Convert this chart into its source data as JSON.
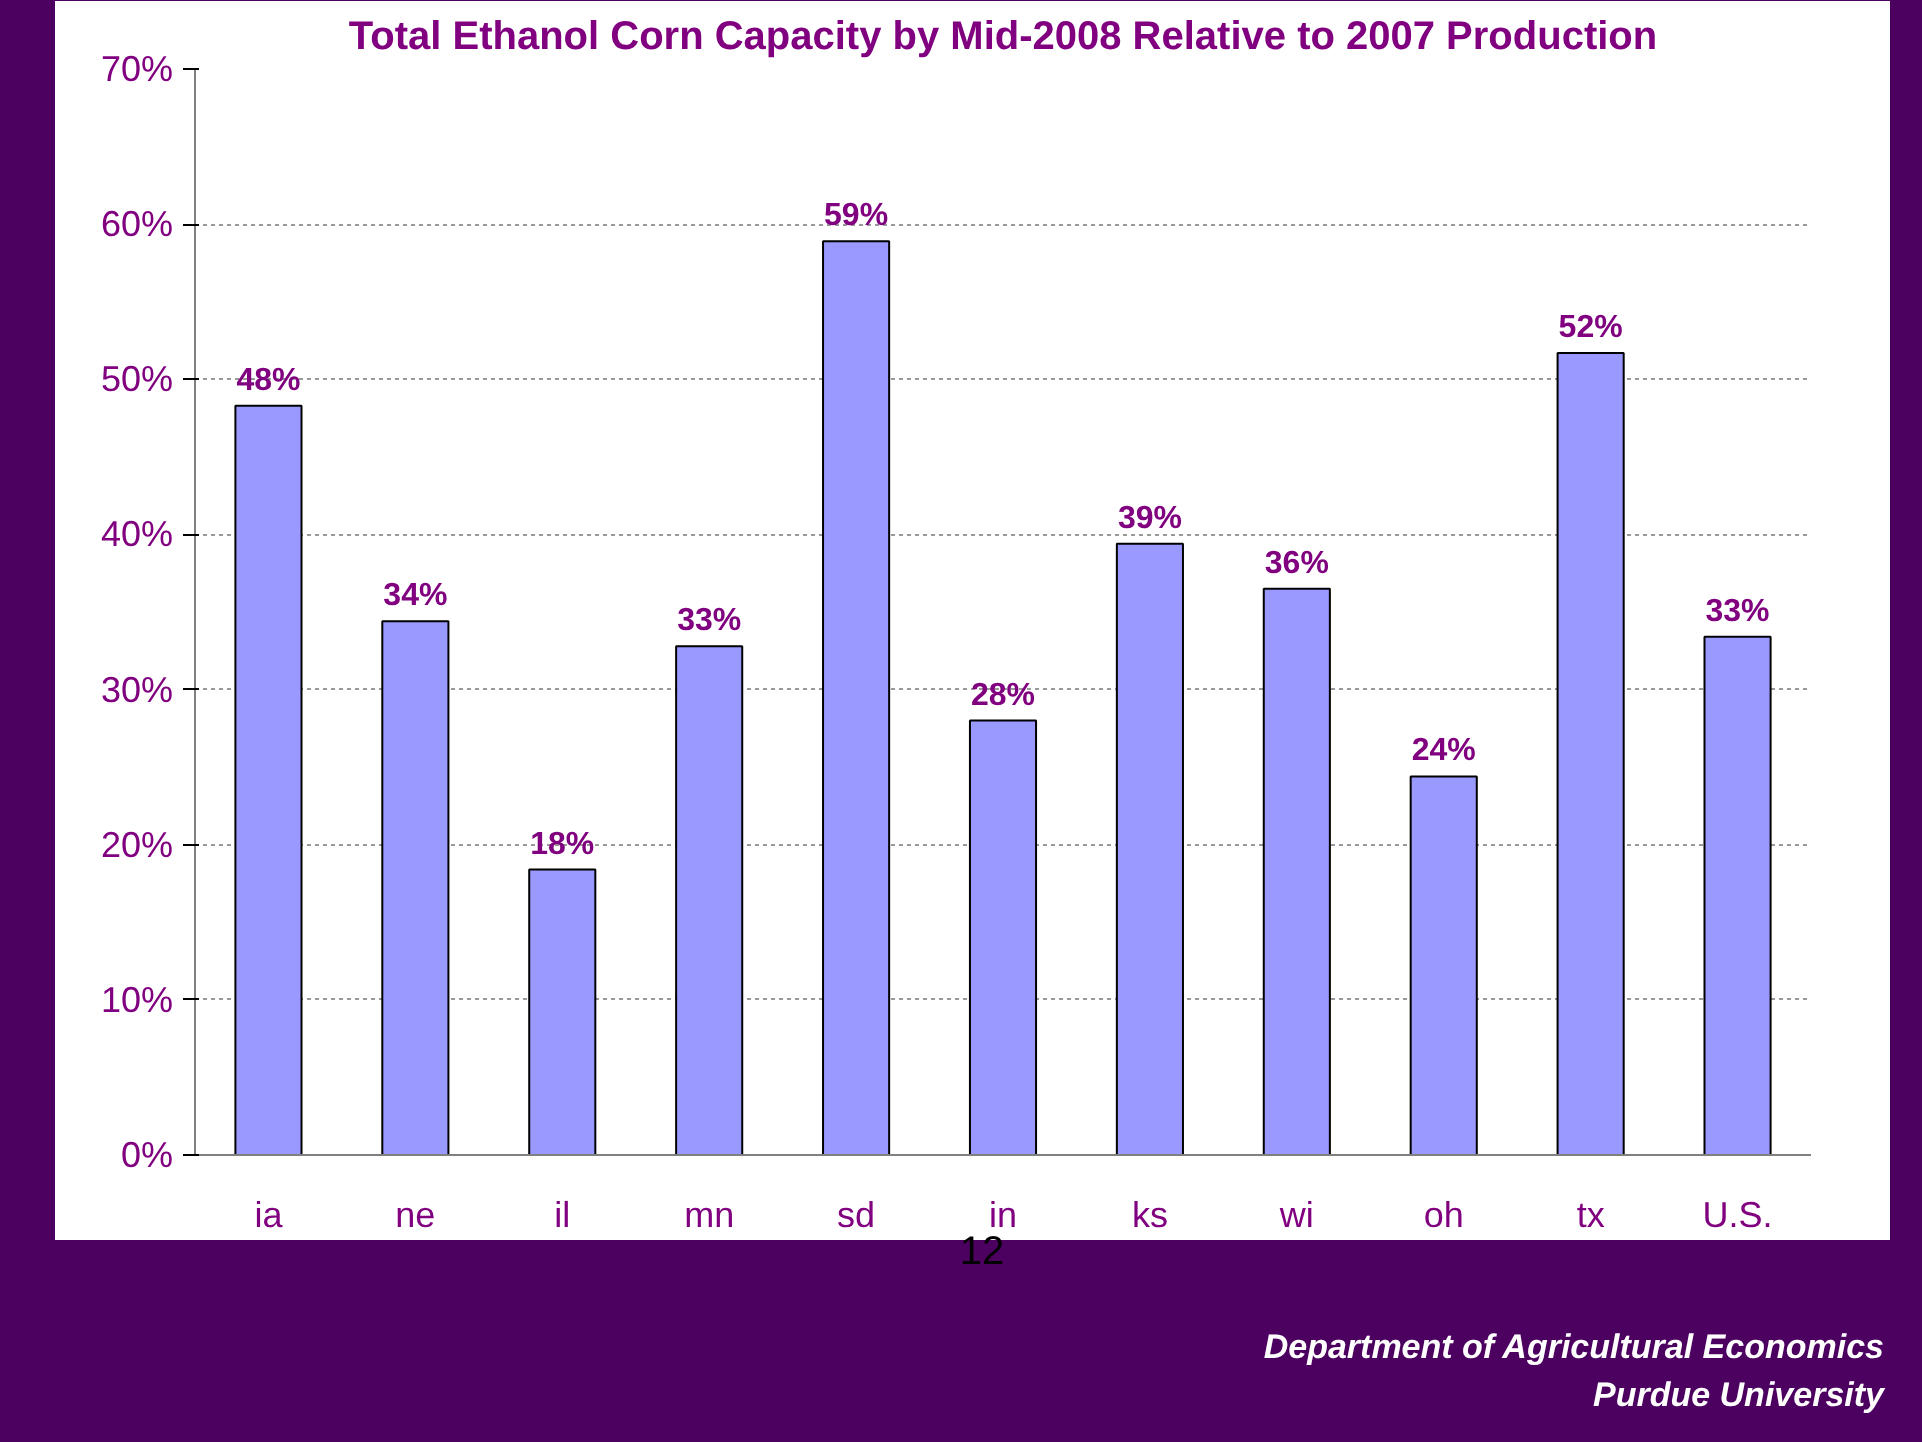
{
  "chart_data": {
    "type": "bar",
    "title": "Total Ethanol Corn Capacity by Mid-2008 Relative to 2007 Production",
    "categories": [
      "ia",
      "ne",
      "il",
      "mn",
      "sd",
      "in",
      "ks",
      "wi",
      "oh",
      "tx",
      "U.S."
    ],
    "values": [
      48.3,
      34.4,
      18.4,
      32.8,
      58.9,
      28.0,
      39.4,
      36.5,
      24.4,
      51.7,
      33.4
    ],
    "value_labels": [
      "48%",
      "34%",
      "18%",
      "33%",
      "59%",
      "28%",
      "39%",
      "36%",
      "24%",
      "52%",
      "33%"
    ],
    "color": "#9999ff",
    "ylim": [
      0,
      70
    ],
    "yticks": [
      {
        "value": 0,
        "label": "0%"
      },
      {
        "value": 10,
        "label": "10%"
      },
      {
        "value": 20,
        "label": "20%"
      },
      {
        "value": 30,
        "label": "30%"
      },
      {
        "value": 40,
        "label": "40%"
      },
      {
        "value": 50,
        "label": "50%"
      },
      {
        "value": 60,
        "label": "60%"
      },
      {
        "value": 70,
        "label": "70%"
      }
    ],
    "grid": "y",
    "annotations": [
      "12",
      "Department of Agricultural Economics",
      "Purdue University"
    ]
  }
}
